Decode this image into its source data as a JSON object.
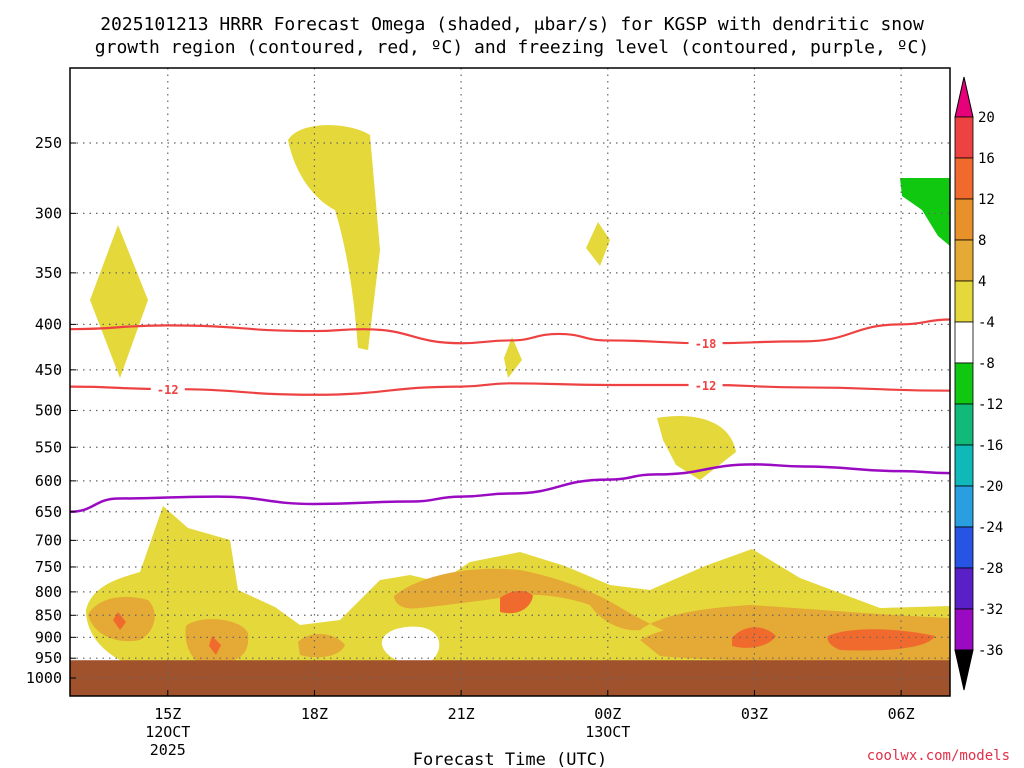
{
  "chart_data": {
    "type": "heatmap",
    "title_line1": "2025101213 HRRR Forecast Omega (shaded, μbar/s) for KGSP with dendritic snow",
    "title_line2": "growth region (contoured, red, ºC) and freezing level (contoured, purple, ºC)",
    "xlabel": "Forecast Time (UTC)",
    "credit": "coolwx.com/models",
    "y_ticks": [
      "250",
      "300",
      "350",
      "400",
      "450",
      "500",
      "550",
      "600",
      "650",
      "700",
      "750",
      "800",
      "850",
      "900",
      "950",
      "1000"
    ],
    "y_values": [
      250,
      300,
      350,
      400,
      450,
      500,
      550,
      600,
      650,
      700,
      750,
      800,
      850,
      900,
      950,
      1000
    ],
    "ylim": [
      185,
      1025
    ],
    "x_ticks": [
      {
        "label": "15Z",
        "hour": 2
      },
      {
        "label": "18Z",
        "hour": 5
      },
      {
        "label": "21Z",
        "hour": 8
      },
      {
        "label": "00Z",
        "hour": 11
      },
      {
        "label": "03Z",
        "hour": 14
      },
      {
        "label": "06Z",
        "hour": 17
      }
    ],
    "x_sublabels": [
      {
        "hour": 2,
        "line1": "12OCT",
        "line2": "2025"
      },
      {
        "hour": 11,
        "line1": "13OCT",
        "line2": ""
      }
    ],
    "xlim": [
      0,
      18
    ],
    "colorbar": {
      "labels": [
        "20",
        "16",
        "12",
        "8",
        "4",
        "-4",
        "-8",
        "-12",
        "-16",
        "-20",
        "-24",
        "-28",
        "-32",
        "-36"
      ],
      "colors": [
        "#ee4242",
        "#f06a2e",
        "#e8902a",
        "#e5a935",
        "#e5d83a",
        "#ffffff",
        "#10c810",
        "#12ba7a",
        "#10b9b9",
        "#2a9fe0",
        "#2854e6",
        "#5a20c8",
        "#9a0ac2",
        "#a8a8a8"
      ],
      "top_arrow_color": "#e6007a",
      "bottom_arrow_color": "#000000"
    },
    "red_contours": [
      {
        "label": "-18",
        "label_hour": 13,
        "points": [
          [
            0,
            405
          ],
          [
            2,
            401
          ],
          [
            5,
            407
          ],
          [
            6,
            405
          ],
          [
            8,
            420
          ],
          [
            9,
            417
          ],
          [
            10,
            410
          ],
          [
            11,
            417
          ],
          [
            13,
            420
          ],
          [
            15,
            418
          ],
          [
            17,
            400
          ],
          [
            18,
            395
          ]
        ]
      },
      {
        "label": "-12",
        "label_hour": 2,
        "label_hour2": 13,
        "points": [
          [
            0,
            470
          ],
          [
            2,
            473
          ],
          [
            5,
            480
          ],
          [
            8,
            470
          ],
          [
            9,
            466
          ],
          [
            11,
            468
          ],
          [
            13,
            468
          ],
          [
            15,
            471
          ],
          [
            18,
            475
          ]
        ]
      }
    ],
    "purple_contour": {
      "points": [
        [
          0,
          650
        ],
        [
          1,
          628
        ],
        [
          3,
          625
        ],
        [
          5,
          637
        ],
        [
          7,
          633
        ],
        [
          8,
          625
        ],
        [
          9,
          620
        ],
        [
          11,
          598
        ],
        [
          12,
          590
        ],
        [
          14,
          575
        ],
        [
          15,
          578
        ],
        [
          17,
          585
        ],
        [
          18,
          588
        ]
      ]
    },
    "surface_color": "#a0522d",
    "surface_pressure": 975
  }
}
